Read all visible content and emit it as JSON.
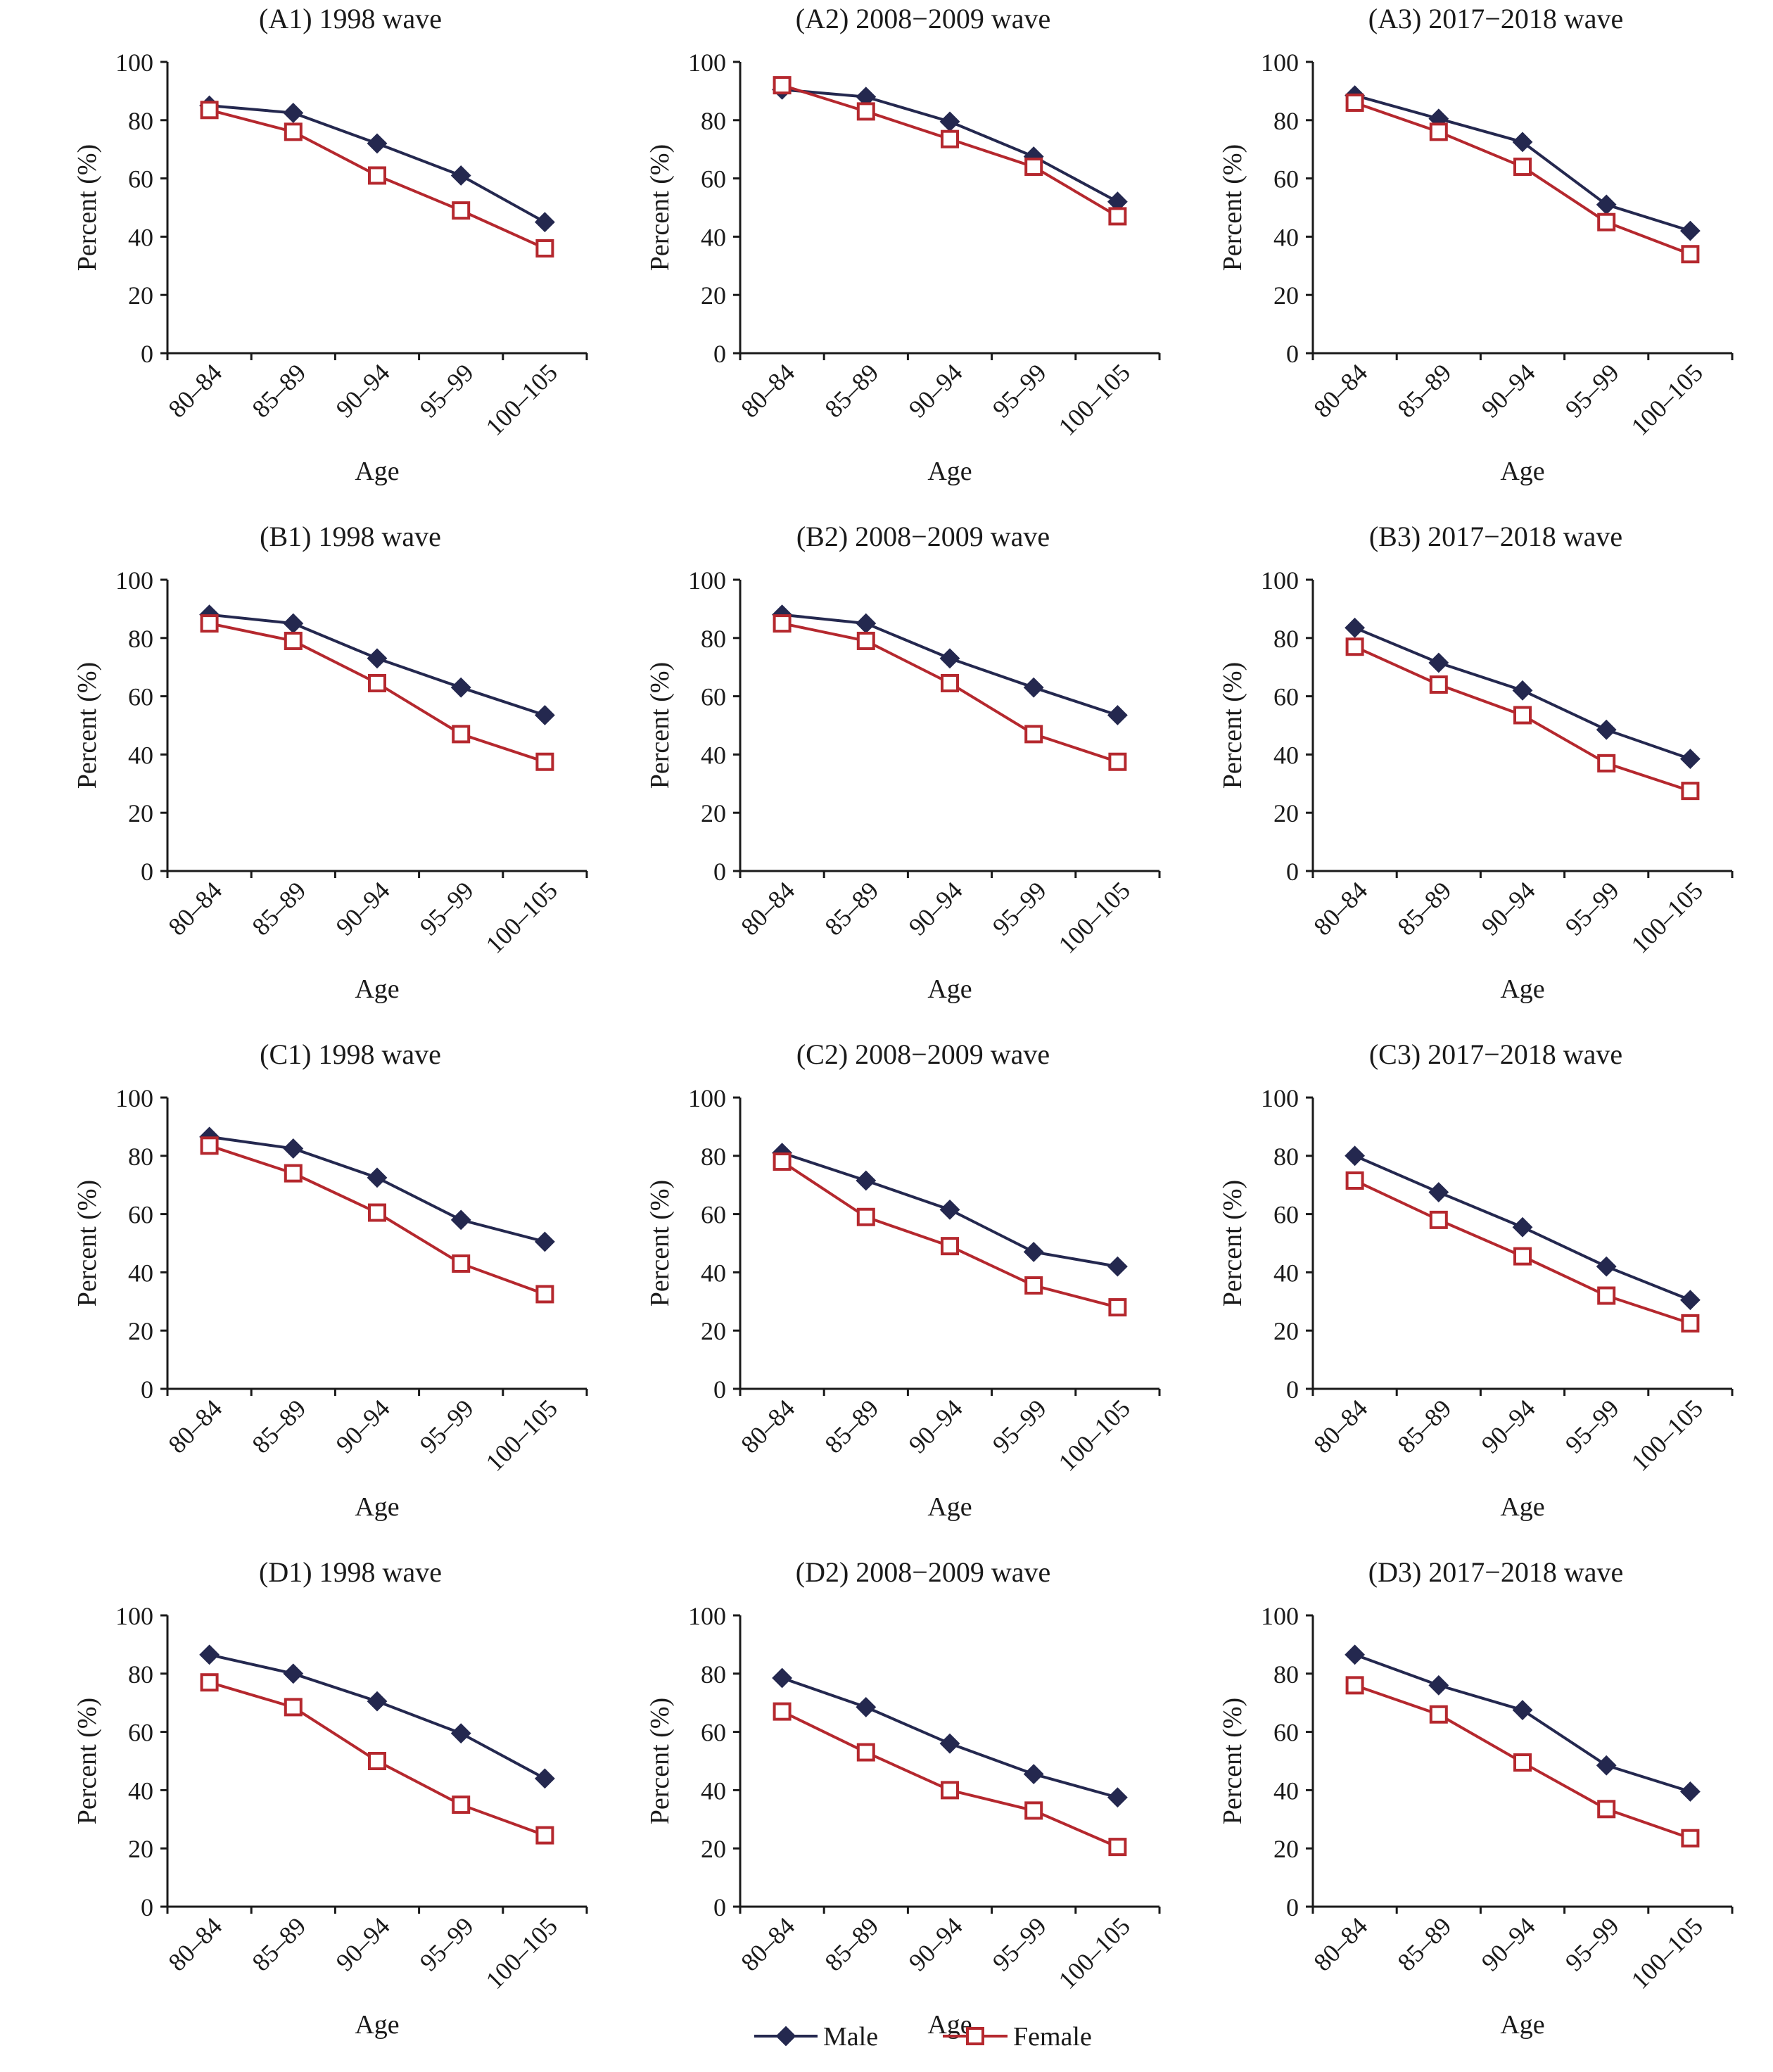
{
  "colors": {
    "male": "#24284f",
    "female": "#b5282e",
    "axis": "#1a1a1a"
  },
  "legend": {
    "position": "bottom-center",
    "male_label": "Male",
    "female_label": "Female",
    "male_marker": "filled-diamond",
    "female_marker": "open-square"
  },
  "chart_data": [
    {
      "type": "line",
      "title": "(A1) 1998 wave",
      "xlabel": "Age",
      "ylabel": "Percent (%)",
      "ylim": [
        0,
        100
      ],
      "yticks": [
        "0",
        "20",
        "40",
        "60",
        "80",
        "100"
      ],
      "categories": [
        "80–84",
        "85–89",
        "90–94",
        "95–99",
        "100–105"
      ],
      "series": [
        {
          "name": "Male",
          "values": [
            85,
            82.5,
            72,
            61,
            45
          ]
        },
        {
          "name": "Female",
          "values": [
            83.5,
            76,
            61,
            49,
            36
          ]
        }
      ]
    },
    {
      "type": "line",
      "title": "(A2) 2008−2009 wave",
      "xlabel": "Age",
      "ylabel": "Percent (%)",
      "ylim": [
        0,
        100
      ],
      "yticks": [
        "0",
        "20",
        "40",
        "60",
        "80",
        "100"
      ],
      "categories": [
        "80–84",
        "85–89",
        "90–94",
        "95–99",
        "100–105"
      ],
      "series": [
        {
          "name": "Male",
          "values": [
            90.5,
            88,
            79.5,
            67.5,
            52
          ]
        },
        {
          "name": "Female",
          "values": [
            92,
            83,
            73.5,
            64,
            47
          ]
        }
      ]
    },
    {
      "type": "line",
      "title": "(A3) 2017−2018 wave",
      "xlabel": "Age",
      "ylabel": "Percent (%)",
      "ylim": [
        0,
        100
      ],
      "yticks": [
        "0",
        "20",
        "40",
        "60",
        "80",
        "100"
      ],
      "categories": [
        "80–84",
        "85–89",
        "90–94",
        "95–99",
        "100–105"
      ],
      "series": [
        {
          "name": "Male",
          "values": [
            88.5,
            80.5,
            72.5,
            51,
            42
          ]
        },
        {
          "name": "Female",
          "values": [
            86,
            76,
            64,
            45,
            34
          ]
        }
      ]
    },
    {
      "type": "line",
      "title": "(B1) 1998 wave",
      "xlabel": "Age",
      "ylabel": "Percent (%)",
      "ylim": [
        0,
        100
      ],
      "yticks": [
        "0",
        "20",
        "40",
        "60",
        "80",
        "100"
      ],
      "categories": [
        "80–84",
        "85–89",
        "90–94",
        "95–99",
        "100–105"
      ],
      "series": [
        {
          "name": "Male",
          "values": [
            88,
            85,
            73,
            63,
            53.5
          ]
        },
        {
          "name": "Female",
          "values": [
            85,
            79,
            64.5,
            47,
            37.5
          ]
        }
      ]
    },
    {
      "type": "line",
      "title": "(B2) 2008−2009 wave",
      "xlabel": "Age",
      "ylabel": "Percent (%)",
      "ylim": [
        0,
        100
      ],
      "yticks": [
        "0",
        "20",
        "40",
        "60",
        "80",
        "100"
      ],
      "categories": [
        "80–84",
        "85–89",
        "90–94",
        "95–99",
        "100–105"
      ],
      "series": [
        {
          "name": "Male",
          "values": [
            88,
            85,
            73,
            63,
            53.5
          ]
        },
        {
          "name": "Female",
          "values": [
            85,
            79,
            64.5,
            47,
            37.5
          ]
        }
      ]
    },
    {
      "type": "line",
      "title": "(B3) 2017−2018 wave",
      "xlabel": "Age",
      "ylabel": "Percent (%)",
      "ylim": [
        0,
        100
      ],
      "yticks": [
        "0",
        "20",
        "40",
        "60",
        "80",
        "100"
      ],
      "categories": [
        "80–84",
        "85–89",
        "90–94",
        "95–99",
        "100–105"
      ],
      "series": [
        {
          "name": "Male",
          "values": [
            83.5,
            71.5,
            62,
            48.5,
            38.5
          ]
        },
        {
          "name": "Female",
          "values": [
            77,
            64,
            53.5,
            37,
            27.5
          ]
        }
      ]
    },
    {
      "type": "line",
      "title": "(C1) 1998 wave",
      "xlabel": "Age",
      "ylabel": "Percent (%)",
      "ylim": [
        0,
        100
      ],
      "yticks": [
        "0",
        "20",
        "40",
        "60",
        "80",
        "100"
      ],
      "categories": [
        "80–84",
        "85–89",
        "90–94",
        "95–99",
        "100–105"
      ],
      "series": [
        {
          "name": "Male",
          "values": [
            86.5,
            82.5,
            72.5,
            58,
            50.5
          ]
        },
        {
          "name": "Female",
          "values": [
            83.5,
            74,
            60.5,
            43,
            32.5
          ]
        }
      ]
    },
    {
      "type": "line",
      "title": "(C2) 2008−2009 wave",
      "xlabel": "Age",
      "ylabel": "Percent (%)",
      "ylim": [
        0,
        100
      ],
      "yticks": [
        "0",
        "20",
        "40",
        "60",
        "80",
        "100"
      ],
      "categories": [
        "80–84",
        "85–89",
        "90–94",
        "95–99",
        "100–105"
      ],
      "series": [
        {
          "name": "Male",
          "values": [
            81,
            71.5,
            61.5,
            47,
            42
          ]
        },
        {
          "name": "Female",
          "values": [
            78,
            59,
            49,
            35.5,
            28
          ]
        }
      ]
    },
    {
      "type": "line",
      "title": "(C3) 2017−2018 wave",
      "xlabel": "Age",
      "ylabel": "Percent (%)",
      "ylim": [
        0,
        100
      ],
      "yticks": [
        "0",
        "20",
        "40",
        "60",
        "80",
        "100"
      ],
      "categories": [
        "80–84",
        "85–89",
        "90–94",
        "95–99",
        "100–105"
      ],
      "series": [
        {
          "name": "Male",
          "values": [
            80,
            67.5,
            55.5,
            42,
            30.5
          ]
        },
        {
          "name": "Female",
          "values": [
            71.5,
            58,
            45.5,
            32,
            22.5
          ]
        }
      ]
    },
    {
      "type": "line",
      "title": "(D1) 1998 wave",
      "xlabel": "Age",
      "ylabel": "Percent (%)",
      "ylim": [
        0,
        100
      ],
      "yticks": [
        "0",
        "20",
        "40",
        "60",
        "80",
        "100"
      ],
      "categories": [
        "80–84",
        "85–89",
        "90–94",
        "95–99",
        "100–105"
      ],
      "series": [
        {
          "name": "Male",
          "values": [
            86.5,
            80,
            70.5,
            59.5,
            44
          ]
        },
        {
          "name": "Female",
          "values": [
            77,
            68.5,
            50,
            35,
            24.5
          ]
        }
      ]
    },
    {
      "type": "line",
      "title": "(D2) 2008−2009 wave",
      "xlabel": "Age",
      "ylabel": "Percent (%)",
      "ylim": [
        0,
        100
      ],
      "yticks": [
        "0",
        "20",
        "40",
        "60",
        "80",
        "100"
      ],
      "categories": [
        "80–84",
        "85–89",
        "90–94",
        "95–99",
        "100–105"
      ],
      "series": [
        {
          "name": "Male",
          "values": [
            78.5,
            68.5,
            56,
            45.5,
            37.5
          ]
        },
        {
          "name": "Female",
          "values": [
            67,
            53,
            40,
            33,
            20.5
          ]
        }
      ]
    },
    {
      "type": "line",
      "title": "(D3) 2017−2018 wave",
      "xlabel": "Age",
      "ylabel": "Percent (%)",
      "ylim": [
        0,
        100
      ],
      "yticks": [
        "0",
        "20",
        "40",
        "60",
        "80",
        "100"
      ],
      "categories": [
        "80–84",
        "85–89",
        "90–94",
        "95–99",
        "100–105"
      ],
      "series": [
        {
          "name": "Male",
          "values": [
            86.5,
            76,
            67.5,
            48.5,
            39.5
          ]
        },
        {
          "name": "Female",
          "values": [
            76,
            66,
            49.5,
            33.5,
            23.5
          ]
        }
      ]
    }
  ]
}
